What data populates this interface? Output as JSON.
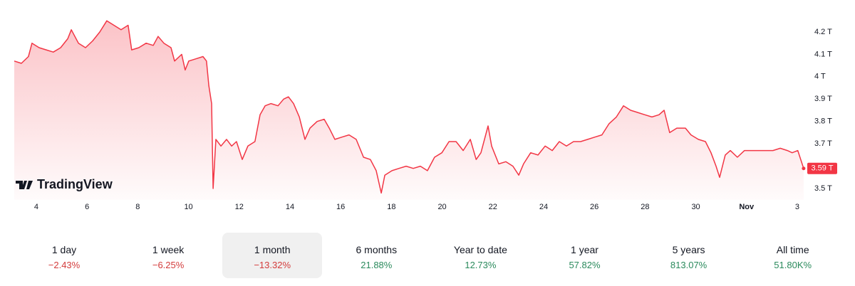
{
  "chart_data": {
    "type": "area",
    "brand": "TradingView",
    "color": "#f23645",
    "x": [
      3.13,
      3.41,
      3.69,
      3.83,
      4.11,
      4.39,
      4.67,
      4.96,
      5.24,
      5.38,
      5.66,
      5.94,
      6.22,
      6.5,
      6.78,
      7.06,
      7.34,
      7.62,
      7.76,
      8.04,
      8.33,
      8.61,
      8.8,
      9.03,
      9.31,
      9.45,
      9.73,
      9.87,
      10.01,
      10.29,
      10.57,
      10.71,
      10.8,
      10.91,
      10.97,
      11.08,
      11.28,
      11.5,
      11.7,
      11.89,
      12.12,
      12.34,
      12.62,
      12.82,
      13.02,
      13.25,
      13.53,
      13.75,
      13.94,
      14.14,
      14.37,
      14.59,
      14.79,
      15.07,
      15.35,
      15.55,
      15.77,
      16.05,
      16.33,
      16.61,
      16.9,
      17.17,
      17.4,
      17.6,
      17.74,
      18.02,
      18.3,
      18.58,
      18.86,
      19.14,
      19.42,
      19.7,
      19.99,
      20.27,
      20.55,
      20.83,
      21.11,
      21.34,
      21.53,
      21.81,
      21.95,
      22.23,
      22.51,
      22.79,
      23.02,
      23.21,
      23.49,
      23.78,
      24.06,
      24.34,
      24.62,
      24.9,
      25.18,
      25.46,
      25.74,
      26.02,
      26.3,
      26.58,
      26.87,
      27.15,
      27.43,
      27.71,
      27.99,
      28.27,
      28.55,
      28.75,
      28.97,
      29.25,
      29.59,
      29.81,
      30.1,
      30.38,
      30.6,
      30.8,
      30.94,
      31.16,
      31.36,
      31.64,
      31.92,
      32.34,
      32.76,
      33.04,
      33.33,
      33.61,
      33.8,
      34.02,
      34.25
    ],
    "values": [
      4.07,
      4.06,
      4.09,
      4.15,
      4.13,
      4.12,
      4.11,
      4.13,
      4.17,
      4.21,
      4.15,
      4.13,
      4.16,
      4.2,
      4.25,
      4.23,
      4.21,
      4.23,
      4.12,
      4.13,
      4.15,
      4.14,
      4.18,
      4.15,
      4.13,
      4.07,
      4.1,
      4.03,
      4.07,
      4.08,
      4.09,
      4.07,
      3.96,
      3.88,
      3.5,
      3.72,
      3.69,
      3.72,
      3.69,
      3.71,
      3.63,
      3.69,
      3.71,
      3.83,
      3.87,
      3.88,
      3.87,
      3.9,
      3.91,
      3.88,
      3.82,
      3.72,
      3.77,
      3.8,
      3.81,
      3.77,
      3.72,
      3.73,
      3.74,
      3.72,
      3.64,
      3.63,
      3.58,
      3.48,
      3.56,
      3.58,
      3.59,
      3.6,
      3.59,
      3.6,
      3.58,
      3.64,
      3.66,
      3.71,
      3.71,
      3.67,
      3.72,
      3.63,
      3.66,
      3.78,
      3.69,
      3.61,
      3.62,
      3.6,
      3.56,
      3.61,
      3.66,
      3.65,
      3.69,
      3.67,
      3.71,
      3.69,
      3.71,
      3.71,
      3.72,
      3.73,
      3.74,
      3.79,
      3.82,
      3.87,
      3.85,
      3.84,
      3.83,
      3.82,
      3.83,
      3.85,
      3.75,
      3.77,
      3.77,
      3.74,
      3.72,
      3.71,
      3.66,
      3.6,
      3.55,
      3.65,
      3.67,
      3.64,
      3.67,
      3.67,
      3.67,
      3.67,
      3.68,
      3.67,
      3.66,
      3.67,
      3.59
    ],
    "last_value": 3.59,
    "last_label": "3.59 T",
    "xlim": [
      3.13,
      34.31
    ],
    "xticks": [
      4,
      6,
      8,
      10,
      12,
      14,
      16,
      18,
      20,
      22,
      24,
      26,
      28,
      30,
      {
        "value": 32,
        "label": "Nov"
      },
      {
        "value": 34,
        "label": "3"
      }
    ],
    "ylim": [
      3.45,
      4.28
    ],
    "yticks": [
      {
        "value": 3.5,
        "label": "3.5 T"
      },
      {
        "value": 3.6,
        "label": "3.6 T"
      },
      {
        "value": 3.7,
        "label": "3.7 T"
      },
      {
        "value": 3.8,
        "label": "3.8 T"
      },
      {
        "value": 3.9,
        "label": "3.9 T"
      },
      {
        "value": 4,
        "label": "4 T"
      },
      {
        "value": 4.1,
        "label": "4.1 T"
      },
      {
        "value": 4.2,
        "label": "4.2 T"
      }
    ]
  },
  "periods": [
    {
      "label": "1 day",
      "change": "−2.43%"
    },
    {
      "label": "1 week",
      "change": "−6.25%"
    },
    {
      "label": "1 month",
      "change": "−13.32%",
      "selected": true
    },
    {
      "label": "6 months",
      "change": "21.88%"
    },
    {
      "label": "Year to date",
      "change": "12.73%"
    },
    {
      "label": "1 year",
      "change": "57.82%"
    },
    {
      "label": "5 years",
      "change": "813.07%"
    },
    {
      "label": "All time",
      "change": "51.80K%"
    }
  ]
}
